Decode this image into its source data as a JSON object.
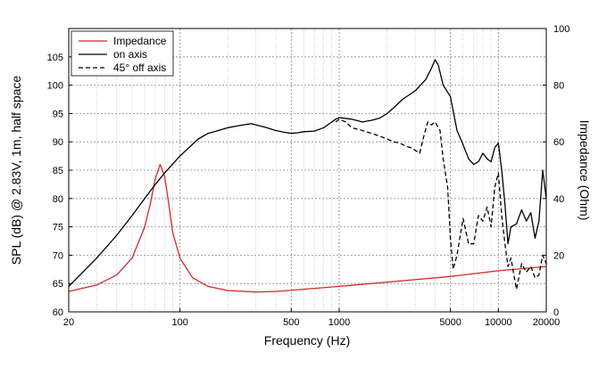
{
  "chart_data": {
    "type": "line",
    "xlabel": "Frequency (Hz)",
    "ylabel": "SPL (dB) @ 2.83V, 1m, half space",
    "y2label": "Impedance (Ohm)",
    "xscale": "log",
    "xlim": [
      20,
      20000
    ],
    "ylim": [
      60,
      110
    ],
    "y2lim": [
      0,
      100
    ],
    "x_ticks": [
      20,
      100,
      500,
      1000,
      5000,
      10000,
      20000
    ],
    "x_tick_labels": [
      "20",
      "100",
      "500",
      "1000",
      "5000",
      "10000",
      "20000"
    ],
    "y_ticks": [
      60,
      65,
      70,
      75,
      80,
      85,
      90,
      95,
      100,
      105
    ],
    "y_tick_labels": [
      "60",
      "65",
      "70",
      "75",
      "80",
      "85",
      "90",
      "95",
      "100",
      "105"
    ],
    "y2_ticks": [
      0,
      20,
      40,
      60,
      80,
      100
    ],
    "y2_tick_labels": [
      "0",
      "20",
      "40",
      "60",
      "80",
      "100"
    ],
    "grid": true,
    "legend_position": "top-left",
    "series": [
      {
        "name": "Impedance",
        "axis": "right",
        "color": "#d62728",
        "dash": "solid",
        "x": [
          20,
          30,
          40,
          50,
          60,
          65,
          70,
          75,
          80,
          85,
          90,
          100,
          120,
          150,
          200,
          300,
          400,
          600,
          1000,
          2000,
          5000,
          10000,
          20000
        ],
        "y": [
          7.2,
          9.5,
          13,
          19,
          30,
          38,
          47,
          52,
          48,
          38,
          28,
          19,
          12,
          9,
          7.5,
          7,
          7.2,
          8,
          9,
          10.5,
          12.5,
          14.5,
          16
        ]
      },
      {
        "name": "on axis",
        "axis": "left",
        "color": "#000000",
        "dash": "solid",
        "x": [
          20,
          30,
          40,
          50,
          60,
          70,
          80,
          100,
          130,
          150,
          200,
          250,
          280,
          300,
          350,
          400,
          450,
          500,
          550,
          600,
          700,
          800,
          900,
          950,
          1000,
          1200,
          1400,
          1600,
          1800,
          2000,
          2200,
          2500,
          3000,
          3500,
          3800,
          4000,
          4200,
          4500,
          5000,
          5500,
          6000,
          6500,
          7000,
          7500,
          8000,
          8500,
          9000,
          9500,
          10000,
          10500,
          11000,
          11500,
          12000,
          13000,
          14000,
          15000,
          16000,
          17000,
          18000,
          19000,
          20000
        ],
        "y": [
          64.5,
          69.5,
          73.5,
          77,
          80,
          82.5,
          84.5,
          87.5,
          90.5,
          91.5,
          92.5,
          93,
          93.2,
          93,
          92.5,
          92,
          91.7,
          91.5,
          91.6,
          91.8,
          91.9,
          92.5,
          93.5,
          94,
          94.3,
          94,
          93.5,
          93.8,
          94.2,
          95,
          96,
          97.5,
          99,
          101,
          103,
          104.5,
          103.5,
          100,
          98,
          92,
          89.5,
          87,
          86,
          86.5,
          88,
          87,
          86.5,
          89,
          89.8,
          85,
          79,
          72,
          75,
          75.5,
          78,
          76,
          77.5,
          73,
          76,
          85,
          80
        ]
      },
      {
        "name": "45° off axis",
        "axis": "left",
        "color": "#000000",
        "dash": "dashed",
        "x": [
          950,
          1000,
          1100,
          1200,
          1400,
          1600,
          1800,
          2000,
          2200,
          2400,
          2600,
          2800,
          3000,
          3200,
          3400,
          3600,
          3800,
          4000,
          4300,
          4500,
          4800,
          5000,
          5200,
          5500,
          6000,
          6500,
          7000,
          7500,
          8000,
          8500,
          9000,
          9500,
          10000,
          10500,
          11000,
          11500,
          12000,
          13000,
          14000,
          15000,
          16000,
          17000,
          18000,
          19000,
          20000
        ],
        "y": [
          93.5,
          94,
          93.5,
          92.5,
          92,
          91.5,
          91,
          90.5,
          90,
          89.8,
          89.3,
          89,
          88.5,
          88,
          91,
          93.5,
          93,
          93.5,
          92,
          87,
          82,
          73,
          67.5,
          70,
          76.5,
          72,
          72,
          77,
          76,
          78.5,
          75,
          82,
          84.5,
          77,
          72,
          68,
          69.5,
          64,
          68.5,
          67,
          68,
          66,
          66.5,
          70,
          68.5
        ]
      }
    ]
  }
}
